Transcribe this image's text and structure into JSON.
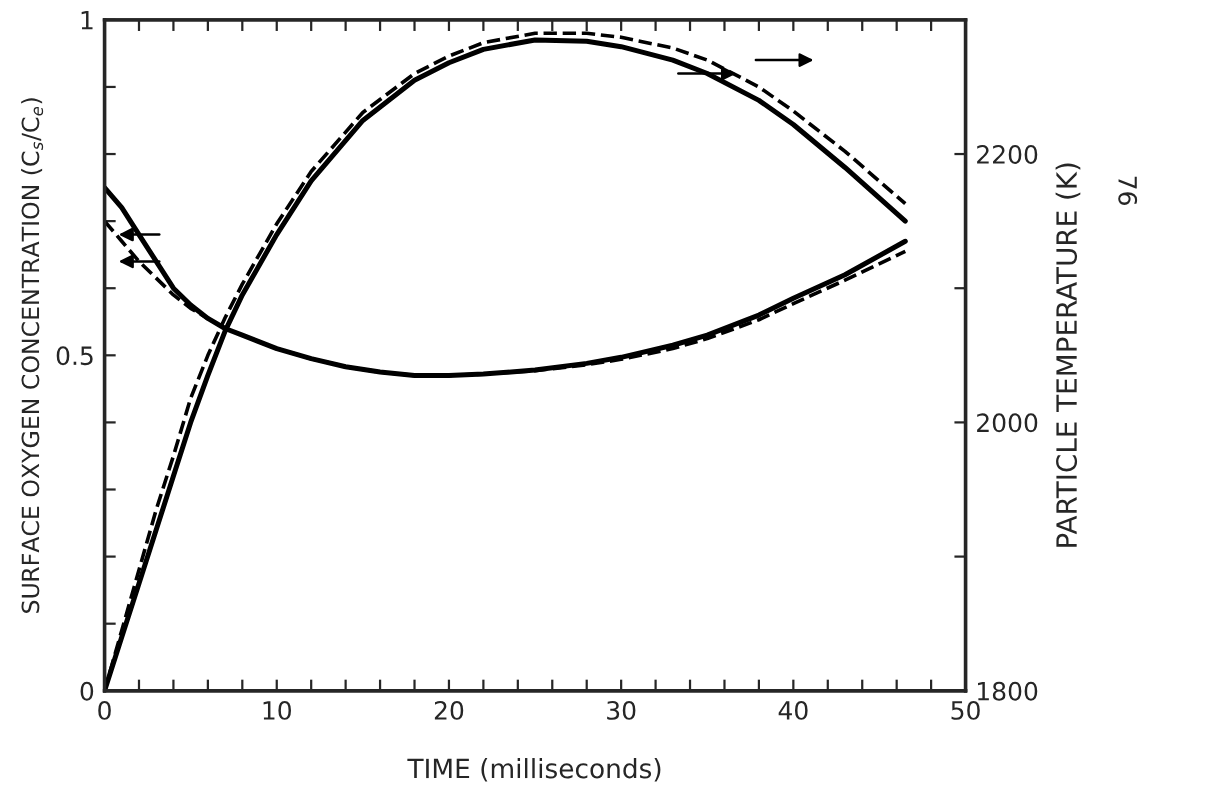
{
  "chart_data": {
    "type": "line",
    "xlabel": "TIME (milliseconds)",
    "ylabel": "SURFACE OXYGEN CONCENTRATION (C$_{s}$/C$_{e}$)",
    "y2label": "PARTICLE TEMPERATURE (K)",
    "annotations": [
      "76"
    ],
    "xlim": [
      0,
      50
    ],
    "xticks": [
      0,
      {
        "value": 2,
        "label": null
      },
      {
        "value": 4,
        "label": null
      },
      {
        "value": 6,
        "label": null
      },
      {
        "value": 8,
        "label": null
      },
      10,
      {
        "value": 12,
        "label": null
      },
      {
        "value": 14,
        "label": null
      },
      {
        "value": 16,
        "label": null
      },
      {
        "value": 18,
        "label": null
      },
      20,
      {
        "value": 22,
        "label": null
      },
      {
        "value": 24,
        "label": null
      },
      {
        "value": 26,
        "label": null
      },
      {
        "value": 28,
        "label": null
      },
      30,
      {
        "value": 32,
        "label": null
      },
      {
        "value": 34,
        "label": null
      },
      {
        "value": 36,
        "label": null
      },
      {
        "value": 38,
        "label": null
      },
      40,
      {
        "value": 42,
        "label": null
      },
      {
        "value": 44,
        "label": null
      },
      {
        "value": 46,
        "label": null
      },
      {
        "value": 48,
        "label": null
      },
      50
    ],
    "ylim": [
      0,
      1
    ],
    "yticks": [
      0,
      {
        "value": 0.1,
        "label": null
      },
      {
        "value": 0.2,
        "label": null
      },
      {
        "value": 0.3,
        "label": null
      },
      {
        "value": 0.4,
        "label": null
      },
      0.5,
      {
        "value": 0.6,
        "label": null
      },
      {
        "value": 0.7,
        "label": null
      },
      {
        "value": 0.8,
        "label": null
      },
      {
        "value": 0.9,
        "label": null
      },
      1
    ],
    "y2lim": [
      1800,
      2300
    ],
    "y2ticks": [
      1800,
      {
        "value": 1900,
        "label": null
      },
      2000,
      {
        "value": 2100,
        "label": null
      },
      2200
    ],
    "grid": false,
    "legend": false,
    "series": [
      {
        "color": "#000000",
        "line_style": "solid",
        "x": [
          0,
          1,
          2,
          3,
          4,
          5,
          6,
          7,
          8,
          10,
          12,
          14,
          16,
          18,
          20,
          22,
          25,
          28,
          30,
          33,
          35,
          38,
          40,
          43,
          46.5
        ],
        "values": [
          0.75,
          0.72,
          0.68,
          0.64,
          0.6,
          0.575,
          0.555,
          0.54,
          0.53,
          0.51,
          0.495,
          0.483,
          0.475,
          0.47,
          0.47,
          0.472,
          0.478,
          0.488,
          0.497,
          0.515,
          0.53,
          0.56,
          0.585,
          0.62,
          0.67
        ]
      },
      {
        "color": "#000000",
        "line_style": "dashed",
        "x": [
          0,
          1,
          2,
          3,
          4,
          5,
          6,
          7,
          8,
          10,
          12,
          14,
          16,
          18,
          20,
          22,
          25,
          28,
          30,
          33,
          35,
          38,
          40,
          43,
          46.5
        ],
        "values": [
          0.7,
          0.67,
          0.64,
          0.615,
          0.59,
          0.57,
          0.555,
          0.54,
          0.53,
          0.51,
          0.495,
          0.483,
          0.475,
          0.47,
          0.47,
          0.472,
          0.477,
          0.486,
          0.494,
          0.51,
          0.525,
          0.553,
          0.577,
          0.612,
          0.655
        ]
      },
      {
        "color": "#000000",
        "line_style": "solid",
        "axis": "y2",
        "x": [
          0,
          1,
          2,
          3,
          4,
          5,
          6,
          7,
          8,
          10,
          12,
          15,
          18,
          20,
          22,
          25,
          28,
          30,
          33,
          35,
          38,
          40,
          43,
          46.5
        ],
        "values": [
          1800,
          1840,
          1880,
          1920,
          1960,
          2000,
          2035,
          2068,
          2095,
          2140,
          2180,
          2225,
          2255,
          2268,
          2278,
          2285,
          2284,
          2280,
          2270,
          2260,
          2240,
          2222,
          2190,
          2150
        ]
      },
      {
        "color": "#000000",
        "line_style": "dashed",
        "axis": "y2",
        "x": [
          0,
          1,
          2,
          3,
          4,
          5,
          6,
          7,
          8,
          10,
          12,
          15,
          18,
          20,
          22,
          25,
          28,
          30,
          33,
          35,
          38,
          40,
          43,
          46.5
        ],
        "values": [
          1800,
          1845,
          1890,
          1935,
          1975,
          2018,
          2050,
          2078,
          2103,
          2148,
          2187,
          2231,
          2260,
          2273,
          2283,
          2290,
          2290,
          2287,
          2279,
          2270,
          2250,
          2232,
          2202,
          2163
        ]
      }
    ]
  }
}
